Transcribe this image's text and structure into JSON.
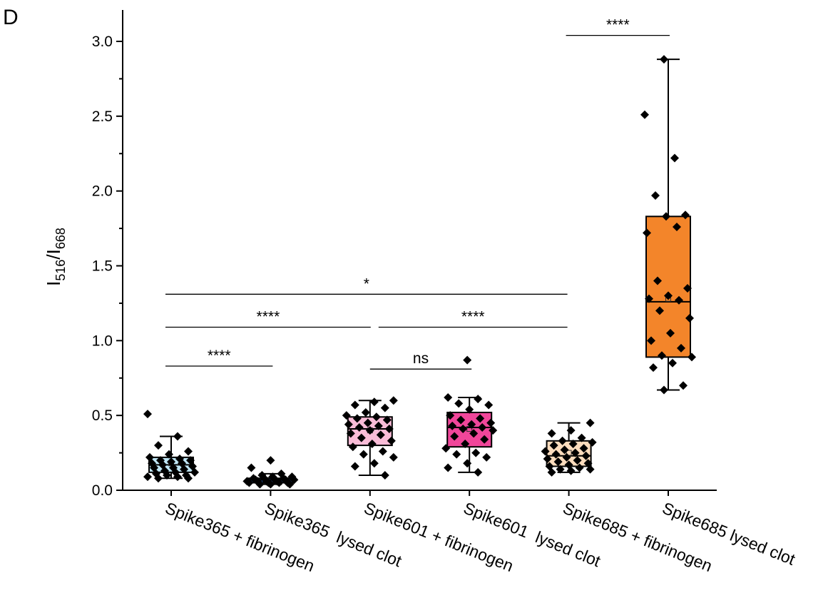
{
  "panel_label": "D",
  "chart_data": {
    "type": "box",
    "ylabel": {
      "base1": "I",
      "sub1": "516",
      "sep": "/",
      "base2": "I",
      "sub2": "668"
    },
    "ylim": [
      0,
      3.15
    ],
    "yticks": [
      0.0,
      0.5,
      1.0,
      1.5,
      2.0,
      2.5,
      3.0
    ],
    "yticklabels": [
      "0.0",
      "0.5",
      "1.0",
      "1.5",
      "2.0",
      "2.5",
      "3.0"
    ],
    "categories": [
      "Spike365 + fibrinogen",
      "Spike365  lysed clot",
      "Spike601 + fibrinogen",
      "Spike601  lysed clot",
      "Spike685 + fibrinogen",
      "Spike685 lysed clot"
    ],
    "groups": [
      {
        "name": "Spike365 + fibrinogen",
        "color": "#bfe6f5",
        "min": 0.08,
        "q1": 0.12,
        "median": 0.17,
        "mean": 0.18,
        "q3": 0.22,
        "max": 0.36,
        "points": [
          0.51,
          0.36,
          0.3,
          0.26,
          0.24,
          0.22,
          0.21,
          0.2,
          0.2,
          0.19,
          0.18,
          0.18,
          0.17,
          0.16,
          0.15,
          0.15,
          0.14,
          0.13,
          0.12,
          0.12,
          0.11,
          0.1,
          0.1,
          0.09,
          0.09,
          0.08,
          0.08
        ]
      },
      {
        "name": "Spike365  lysed clot",
        "color": "#2f6fd6",
        "min": 0.04,
        "q1": 0.05,
        "median": 0.07,
        "mean": 0.07,
        "q3": 0.08,
        "max": 0.11,
        "points": [
          0.2,
          0.15,
          0.11,
          0.1,
          0.09,
          0.09,
          0.08,
          0.08,
          0.08,
          0.07,
          0.07,
          0.07,
          0.07,
          0.06,
          0.06,
          0.06,
          0.06,
          0.05,
          0.05,
          0.05,
          0.05,
          0.04,
          0.04,
          0.04
        ]
      },
      {
        "name": "Spike601 + fibrinogen",
        "color": "#f9bcd7",
        "min": 0.1,
        "q1": 0.3,
        "median": 0.41,
        "mean": 0.4,
        "q3": 0.49,
        "max": 0.6,
        "points": [
          0.6,
          0.59,
          0.57,
          0.55,
          0.52,
          0.5,
          0.49,
          0.48,
          0.47,
          0.45,
          0.44,
          0.43,
          0.42,
          0.41,
          0.4,
          0.38,
          0.37,
          0.35,
          0.33,
          0.31,
          0.29,
          0.26,
          0.24,
          0.22,
          0.18,
          0.16,
          0.1
        ]
      },
      {
        "name": "Spike601  lysed clot",
        "color": "#f0469a",
        "min": 0.12,
        "q1": 0.29,
        "median": 0.42,
        "mean": 0.41,
        "q3": 0.52,
        "max": 0.62,
        "points": [
          0.87,
          0.62,
          0.61,
          0.58,
          0.57,
          0.54,
          0.5,
          0.48,
          0.47,
          0.45,
          0.44,
          0.43,
          0.42,
          0.41,
          0.4,
          0.38,
          0.36,
          0.34,
          0.31,
          0.28,
          0.25,
          0.24,
          0.22,
          0.18,
          0.15,
          0.12
        ]
      },
      {
        "name": "Spike685 + fibrinogen",
        "color": "#fbdcbd",
        "min": 0.12,
        "q1": 0.16,
        "median": 0.23,
        "mean": 0.25,
        "q3": 0.33,
        "max": 0.45,
        "points": [
          0.45,
          0.4,
          0.38,
          0.35,
          0.33,
          0.32,
          0.31,
          0.3,
          0.28,
          0.27,
          0.26,
          0.25,
          0.24,
          0.23,
          0.22,
          0.21,
          0.2,
          0.19,
          0.18,
          0.17,
          0.16,
          0.15,
          0.14,
          0.14,
          0.13,
          0.12
        ]
      },
      {
        "name": "Spike685 lysed clot",
        "color": "#f3852a",
        "min": 0.67,
        "q1": 0.89,
        "median": 1.26,
        "mean": 1.28,
        "q3": 1.83,
        "max": 2.88,
        "points": [
          2.88,
          2.51,
          2.22,
          1.97,
          1.84,
          1.83,
          1.72,
          1.76,
          1.4,
          1.35,
          1.3,
          1.28,
          1.27,
          1.2,
          1.15,
          1.05,
          1.0,
          0.95,
          0.9,
          0.89,
          0.85,
          0.82,
          0.7,
          0.67
        ]
      }
    ],
    "significance": [
      {
        "from": 0,
        "to": 1,
        "y": 0.83,
        "label": "****"
      },
      {
        "from": 2,
        "to": 3,
        "y": 0.81,
        "label": "ns"
      },
      {
        "from": 0,
        "to": 2,
        "y": 1.09,
        "label": "****"
      },
      {
        "from": 2,
        "to": 4,
        "y": 1.09,
        "label": "****"
      },
      {
        "from": 0,
        "to": 4,
        "y": 1.31,
        "label": "*"
      },
      {
        "from": 4,
        "to": 5,
        "y": 3.04,
        "label": "****"
      }
    ],
    "grid": false,
    "legend": "none"
  }
}
